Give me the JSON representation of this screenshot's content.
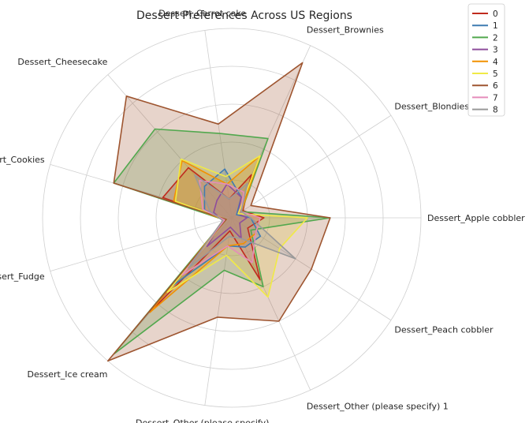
{
  "chart_data": {
    "type": "radar",
    "title": "Dessert Preferences Across US Regions",
    "categories": [
      "Dessert_Apple cobbler",
      "Dessert_Blondies",
      "Dessert_Brownies",
      "Dessert_Carrot cake",
      "Dessert_Cheesecake",
      "Dessert_Cookies",
      "Dessert_Fudge",
      "Dessert_Ice cream",
      "Dessert_Other (please specify)",
      "Dessert_Other (please specify) 1",
      "Dessert_Peach cobbler"
    ],
    "rmax": 1.0,
    "grid": true,
    "legend_position": "top-right",
    "series": [
      {
        "name": "0",
        "color": "#c02b1e",
        "values": [
          0.17,
          0.07,
          0.25,
          0.1,
          0.35,
          0.38,
          0.04,
          0.66,
          0.07,
          0.36,
          0.1
        ]
      },
      {
        "name": "1",
        "color": "#3f7bb2",
        "values": [
          0.1,
          0.03,
          0.12,
          0.26,
          0.22,
          0.15,
          0.04,
          0.47,
          0.15,
          0.17,
          0.18
        ]
      },
      {
        "name": "2",
        "color": "#52a84e",
        "values": [
          0.52,
          0.06,
          0.46,
          0.45,
          0.62,
          0.65,
          0.04,
          0.95,
          0.28,
          0.4,
          0.12
        ]
      },
      {
        "name": "3",
        "color": "#8e4d9c",
        "values": [
          0.08,
          0.04,
          0.12,
          0.18,
          0.12,
          0.1,
          0.05,
          0.2,
          0.05,
          0.12,
          0.05
        ]
      },
      {
        "name": "4",
        "color": "#f29100",
        "values": [
          0.15,
          0.06,
          0.36,
          0.18,
          0.4,
          0.32,
          0.04,
          0.66,
          0.15,
          0.15,
          0.15
        ]
      },
      {
        "name": "5",
        "color": "#f0ea46",
        "values": [
          0.4,
          0.04,
          0.36,
          0.22,
          0.41,
          0.31,
          0.03,
          0.52,
          0.2,
          0.46,
          0.3
        ]
      },
      {
        "name": "6",
        "color": "#9e5530",
        "values": [
          0.52,
          0.12,
          0.9,
          0.5,
          0.85,
          0.65,
          0.03,
          1.0,
          0.53,
          0.6,
          0.5
        ]
      },
      {
        "name": "7",
        "color": "#e58cba",
        "values": [
          0.15,
          0.06,
          0.15,
          0.18,
          0.26,
          0.16,
          0.04,
          0.4,
          0.15,
          0.26,
          0.15
        ]
      },
      {
        "name": "8",
        "color": "#999999",
        "values": [
          0.1,
          0.06,
          0.2,
          0.1,
          0.3,
          0.12,
          0.05,
          0.35,
          0.1,
          0.12,
          0.4
        ]
      }
    ]
  }
}
